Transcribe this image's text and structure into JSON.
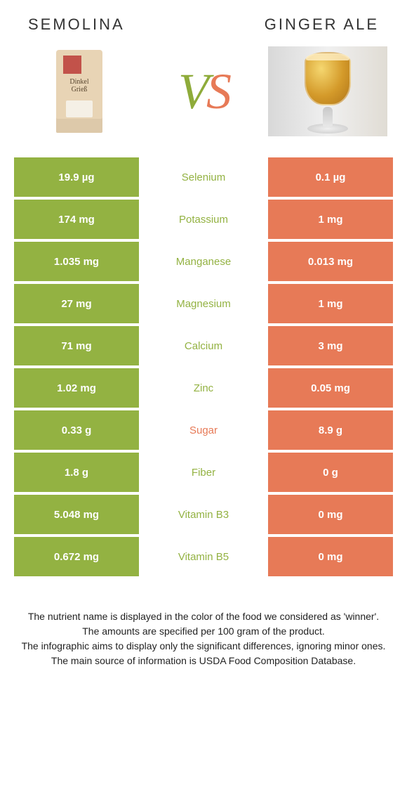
{
  "header": {
    "left": "SEMOLINA",
    "right": "GINGER ALE",
    "vs_v": "V",
    "vs_s": "S"
  },
  "bag": {
    "line1": "Dinkel",
    "line2": "Grieß"
  },
  "colors": {
    "left_bg": "#93b242",
    "right_bg": "#e77a57",
    "winner_left_text": "#93b242",
    "winner_right_text": "#e77a57"
  },
  "rows": [
    {
      "nutrient": "Selenium",
      "left": "19.9 µg",
      "right": "0.1 µg",
      "winner": "left"
    },
    {
      "nutrient": "Potassium",
      "left": "174 mg",
      "right": "1 mg",
      "winner": "left"
    },
    {
      "nutrient": "Manganese",
      "left": "1.035 mg",
      "right": "0.013 mg",
      "winner": "left"
    },
    {
      "nutrient": "Magnesium",
      "left": "27 mg",
      "right": "1 mg",
      "winner": "left"
    },
    {
      "nutrient": "Calcium",
      "left": "71 mg",
      "right": "3 mg",
      "winner": "left"
    },
    {
      "nutrient": "Zinc",
      "left": "1.02 mg",
      "right": "0.05 mg",
      "winner": "left"
    },
    {
      "nutrient": "Sugar",
      "left": "0.33 g",
      "right": "8.9 g",
      "winner": "right"
    },
    {
      "nutrient": "Fiber",
      "left": "1.8 g",
      "right": "0 g",
      "winner": "left"
    },
    {
      "nutrient": "Vitamin B3",
      "left": "5.048 mg",
      "right": "0 mg",
      "winner": "left"
    },
    {
      "nutrient": "Vitamin B5",
      "left": "0.672 mg",
      "right": "0 mg",
      "winner": "left"
    }
  ],
  "notes": [
    "The nutrient name is displayed in the color of the food we considered as 'winner'.",
    "The amounts are specified per 100 gram of the product.",
    "The infographic aims to display only the significant differences, ignoring minor ones.",
    "The main source of information is USDA Food Composition Database."
  ]
}
